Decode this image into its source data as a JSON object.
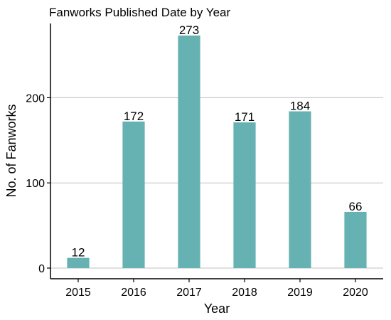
{
  "chart_data": {
    "type": "bar",
    "title": "Fanworks Published Date by Year",
    "xlabel": "Year",
    "ylabel": "No. of Fanworks",
    "categories": [
      "2015",
      "2016",
      "2017",
      "2018",
      "2019",
      "2020"
    ],
    "values": [
      12,
      172,
      273,
      171,
      184,
      66
    ],
    "data_labels": [
      "12",
      "172",
      "273",
      "171",
      "184",
      "66"
    ],
    "ylim": [
      0,
      285
    ],
    "yticks": [
      0,
      100,
      200
    ],
    "ytick_labels": [
      "0",
      "100",
      "200"
    ],
    "grid": "horizontal major",
    "legend": "none",
    "colors": {
      "bar": "#66b2b2",
      "grid": "#c0c0c0",
      "axis": "#000000",
      "text": "#000000"
    }
  }
}
